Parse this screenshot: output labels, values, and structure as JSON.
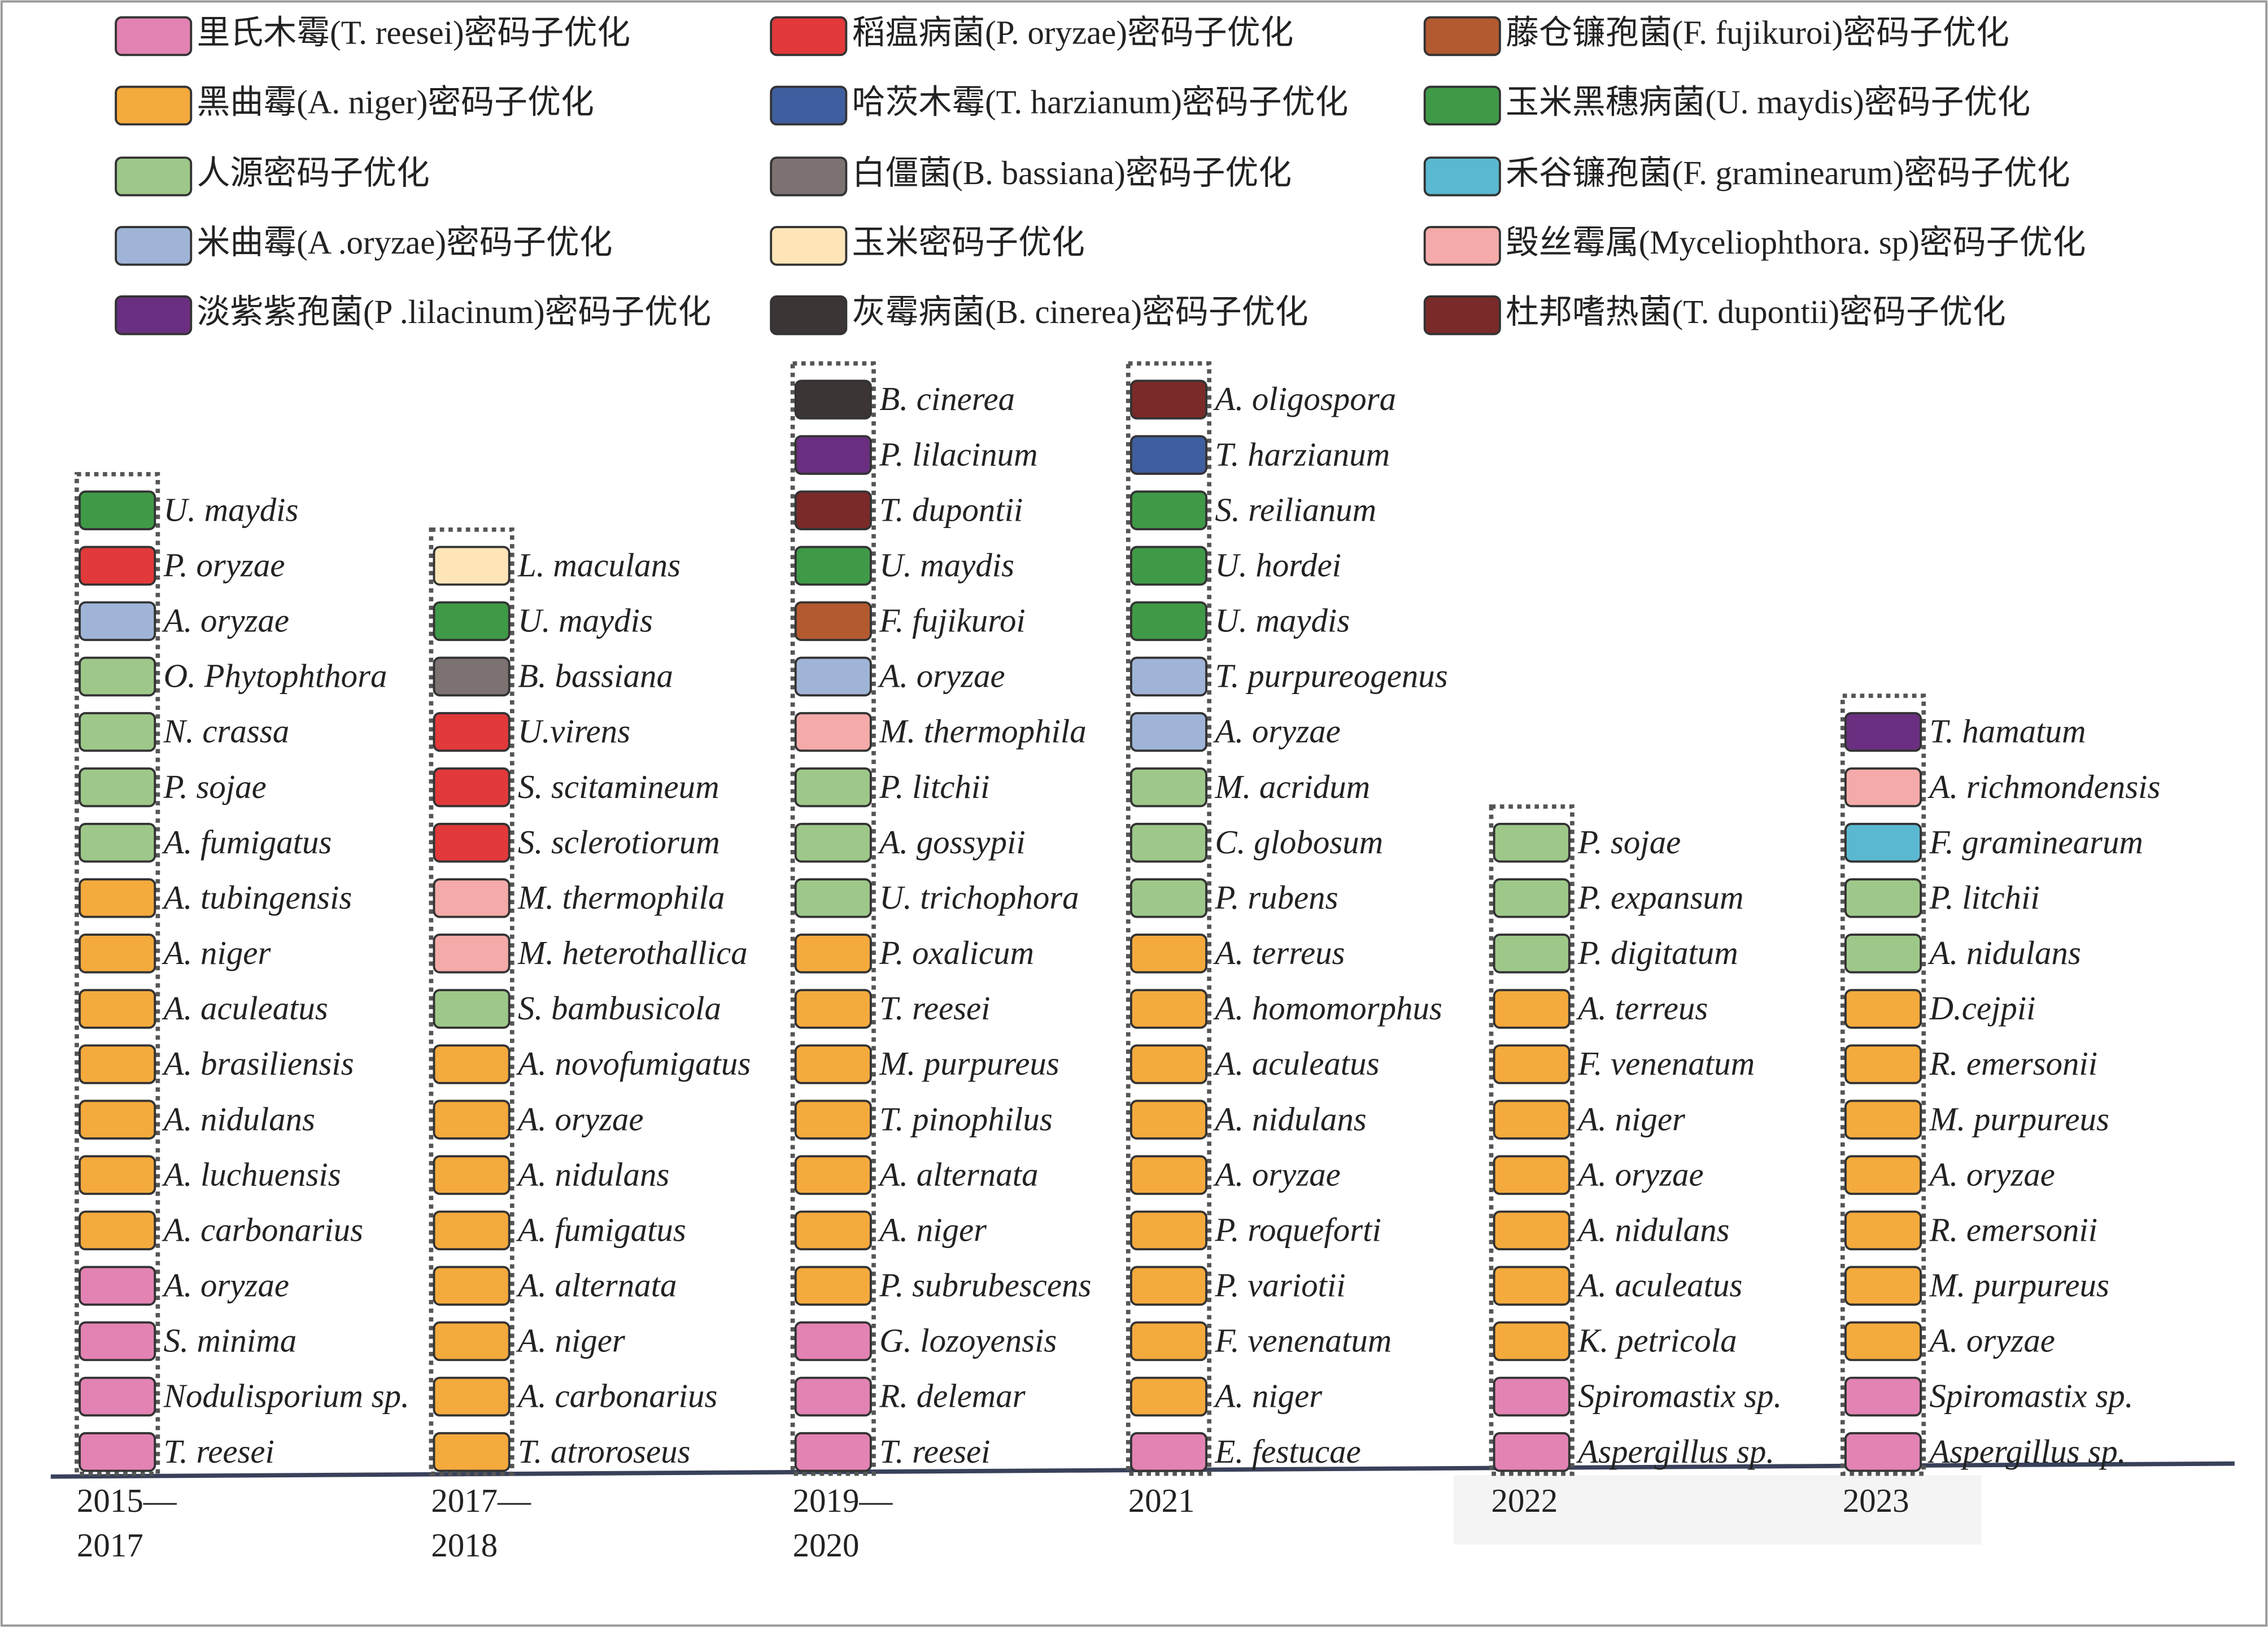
{
  "legend": [
    {
      "label": "里氏木霉(T. reesei)密码子优化",
      "color": "#e283b3"
    },
    {
      "label": "黑曲霉(A. niger)密码子优化",
      "color": "#f4aa3c"
    },
    {
      "label": "人源密码子优化",
      "color": "#9ec88a"
    },
    {
      "label": "米曲霉(A .oryzae)密码子优化",
      "color": "#9fb4d7"
    },
    {
      "label": "淡紫紫孢菌(P .lilacinum)密码子优化",
      "color": "#6a2f80"
    },
    {
      "label": "稻瘟病菌(P. oryzae)密码子优化",
      "color": "#e2393a"
    },
    {
      "label": "哈茨木霉(T. harzianum)密码子优化",
      "color": "#3f5e9f"
    },
    {
      "label": "白僵菌(B. bassiana)密码子优化",
      "color": "#7d7272"
    },
    {
      "label": "玉米密码子优化",
      "color": "#fde5b8"
    },
    {
      "label": "灰霉病菌(B. cinerea)密码子优化",
      "color": "#3c3535"
    },
    {
      "label": "藤仓镰孢菌(F. fujikuroi)密码子优化",
      "color": "#b35a30"
    },
    {
      "label": "玉米黑穗病菌(U. maydis)密码子优化",
      "color": "#3f9a48"
    },
    {
      "label": "禾谷镰孢菌(F. graminearum)密码子优化",
      "color": "#5ab8d0"
    },
    {
      "label": "毁丝霉属(Myceliophthora. sp)密码子优化",
      "color": "#f4aaa8"
    },
    {
      "label": "杜邦嗜热菌(T. dupontii)密码子优化",
      "color": "#7a2a28"
    }
  ],
  "columns": [
    {
      "period": [
        "2015—",
        "2017"
      ],
      "items": [
        {
          "name": "U. maydis",
          "color": "#3f9a48"
        },
        {
          "name": "P. oryzae",
          "color": "#e2393a"
        },
        {
          "name": "A. oryzae",
          "color": "#9fb4d7"
        },
        {
          "name": "O. Phytophthora",
          "color": "#9ec88a"
        },
        {
          "name": "N. crassa",
          "color": "#9ec88a"
        },
        {
          "name": "P. sojae",
          "color": "#9ec88a"
        },
        {
          "name": "A. fumigatus",
          "color": "#9ec88a"
        },
        {
          "name": "A. tubingensis",
          "color": "#f4aa3c"
        },
        {
          "name": "A. niger",
          "color": "#f4aa3c"
        },
        {
          "name": "A. aculeatus",
          "color": "#f4aa3c"
        },
        {
          "name": "A. brasiliensis",
          "color": "#f4aa3c"
        },
        {
          "name": "A. nidulans",
          "color": "#f4aa3c"
        },
        {
          "name": "A. luchuensis",
          "color": "#f4aa3c"
        },
        {
          "name": "A. carbonarius",
          "color": "#f4aa3c"
        },
        {
          "name": "A. oryzae",
          "color": "#e283b3"
        },
        {
          "name": "S. minima",
          "color": "#e283b3"
        },
        {
          "name": "Nodulisporium sp.",
          "color": "#e283b3"
        },
        {
          "name": "T. reesei",
          "color": "#e283b3"
        }
      ]
    },
    {
      "period": [
        "2017—",
        "2018"
      ],
      "items": [
        {
          "name": "L. maculans",
          "color": "#fde5b8"
        },
        {
          "name": "U. maydis",
          "color": "#3f9a48"
        },
        {
          "name": "B. bassiana",
          "color": "#7d7272"
        },
        {
          "name": "U.virens",
          "color": "#e2393a"
        },
        {
          "name": "S. scitamineum",
          "color": "#e2393a"
        },
        {
          "name": "S. sclerotiorum",
          "color": "#e2393a"
        },
        {
          "name": "M. thermophila",
          "color": "#f4aaa8"
        },
        {
          "name": "M. heterothallica",
          "color": "#f4aaa8"
        },
        {
          "name": "S. bambusicola",
          "color": "#9ec88a"
        },
        {
          "name": "A. novofumigatus",
          "color": "#f4aa3c"
        },
        {
          "name": "A. oryzae",
          "color": "#f4aa3c"
        },
        {
          "name": "A. nidulans",
          "color": "#f4aa3c"
        },
        {
          "name": "A. fumigatus",
          "color": "#f4aa3c"
        },
        {
          "name": "A. alternata",
          "color": "#f4aa3c"
        },
        {
          "name": "A. niger",
          "color": "#f4aa3c"
        },
        {
          "name": "A. carbonarius",
          "color": "#f4aa3c"
        },
        {
          "name": "T. atroroseus",
          "color": "#f4aa3c"
        }
      ]
    },
    {
      "period": [
        "2019—",
        "2020"
      ],
      "items": [
        {
          "name": "B. cinerea",
          "color": "#3c3535"
        },
        {
          "name": "P. lilacinum",
          "color": "#6a2f80"
        },
        {
          "name": "T. dupontii",
          "color": "#7a2a28"
        },
        {
          "name": "U. maydis",
          "color": "#3f9a48"
        },
        {
          "name": "F. fujikuroi",
          "color": "#b35a30"
        },
        {
          "name": "A. oryzae",
          "color": "#9fb4d7"
        },
        {
          "name": "M. thermophila",
          "color": "#f4aaa8"
        },
        {
          "name": "P. litchii",
          "color": "#9ec88a"
        },
        {
          "name": "A. gossypii",
          "color": "#9ec88a"
        },
        {
          "name": "U. trichophora",
          "color": "#9ec88a"
        },
        {
          "name": "P. oxalicum",
          "color": "#f4aa3c"
        },
        {
          "name": "T. reesei",
          "color": "#f4aa3c"
        },
        {
          "name": "M. purpureus",
          "color": "#f4aa3c"
        },
        {
          "name": "T. pinophilus",
          "color": "#f4aa3c"
        },
        {
          "name": "A. alternata",
          "color": "#f4aa3c"
        },
        {
          "name": "A. niger",
          "color": "#f4aa3c"
        },
        {
          "name": "P. subrubescens",
          "color": "#f4aa3c"
        },
        {
          "name": "G. lozoyensis",
          "color": "#e283b3"
        },
        {
          "name": "R. delemar",
          "color": "#e283b3"
        },
        {
          "name": "T. reesei",
          "color": "#e283b3"
        }
      ]
    },
    {
      "period": [
        "2021"
      ],
      "items": [
        {
          "name": "A. oligospora",
          "color": "#7a2a28"
        },
        {
          "name": "T. harzianum",
          "color": "#3f5e9f"
        },
        {
          "name": "S. reilianum",
          "color": "#3f9a48"
        },
        {
          "name": "U. hordei",
          "color": "#3f9a48"
        },
        {
          "name": "U. maydis",
          "color": "#3f9a48"
        },
        {
          "name": "T. purpureogenus",
          "color": "#9fb4d7"
        },
        {
          "name": "A. oryzae",
          "color": "#9fb4d7"
        },
        {
          "name": "M. acridum",
          "color": "#9ec88a"
        },
        {
          "name": "C. globosum",
          "color": "#9ec88a"
        },
        {
          "name": "P. rubens",
          "color": "#9ec88a"
        },
        {
          "name": "A. terreus",
          "color": "#f4aa3c"
        },
        {
          "name": "A. homomorphus",
          "color": "#f4aa3c"
        },
        {
          "name": "A. aculeatus",
          "color": "#f4aa3c"
        },
        {
          "name": "A. nidulans",
          "color": "#f4aa3c"
        },
        {
          "name": "A. oryzae",
          "color": "#f4aa3c"
        },
        {
          "name": "P. roqueforti",
          "color": "#f4aa3c"
        },
        {
          "name": "P. variotii",
          "color": "#f4aa3c"
        },
        {
          "name": "F. venenatum",
          "color": "#f4aa3c"
        },
        {
          "name": "A. niger",
          "color": "#f4aa3c"
        },
        {
          "name": "E. festucae",
          "color": "#e283b3"
        }
      ]
    },
    {
      "period": [
        "2022"
      ],
      "items": [
        {
          "name": "P. sojae",
          "color": "#9ec88a"
        },
        {
          "name": "P. expansum",
          "color": "#9ec88a"
        },
        {
          "name": "P. digitatum",
          "color": "#9ec88a"
        },
        {
          "name": "A. terreus",
          "color": "#f4aa3c"
        },
        {
          "name": "F. venenatum",
          "color": "#f4aa3c"
        },
        {
          "name": "A. niger",
          "color": "#f4aa3c"
        },
        {
          "name": "A. oryzae",
          "color": "#f4aa3c"
        },
        {
          "name": "A. nidulans",
          "color": "#f4aa3c"
        },
        {
          "name": "A. aculeatus",
          "color": "#f4aa3c"
        },
        {
          "name": "K. petricola",
          "color": "#f4aa3c"
        },
        {
          "name": "Spiromastix sp.",
          "color": "#e283b3"
        },
        {
          "name": "Aspergillus sp.",
          "color": "#e283b3"
        }
      ]
    },
    {
      "period": [
        "2023"
      ],
      "items": [
        {
          "name": "T. hamatum",
          "color": "#6a2f80"
        },
        {
          "name": "A. richmondensis",
          "color": "#f4aaa8"
        },
        {
          "name": "F. graminearum",
          "color": "#5ab8d0"
        },
        {
          "name": "P. litchii",
          "color": "#9ec88a"
        },
        {
          "name": "A. nidulans",
          "color": "#9ec88a"
        },
        {
          "name": "D.cejpii",
          "color": "#f4aa3c"
        },
        {
          "name": "R. emersonii",
          "color": "#f4aa3c"
        },
        {
          "name": "M. purpureus",
          "color": "#f4aa3c"
        },
        {
          "name": "A. oryzae",
          "color": "#f4aa3c"
        },
        {
          "name": "R. emersonii",
          "color": "#f4aa3c"
        },
        {
          "name": "M. purpureus",
          "color": "#f4aa3c"
        },
        {
          "name": "A. oryzae",
          "color": "#f4aa3c"
        },
        {
          "name": "Spiromastix sp.",
          "color": "#e283b3"
        },
        {
          "name": "Aspergillus sp.",
          "color": "#e283b3"
        }
      ]
    }
  ]
}
